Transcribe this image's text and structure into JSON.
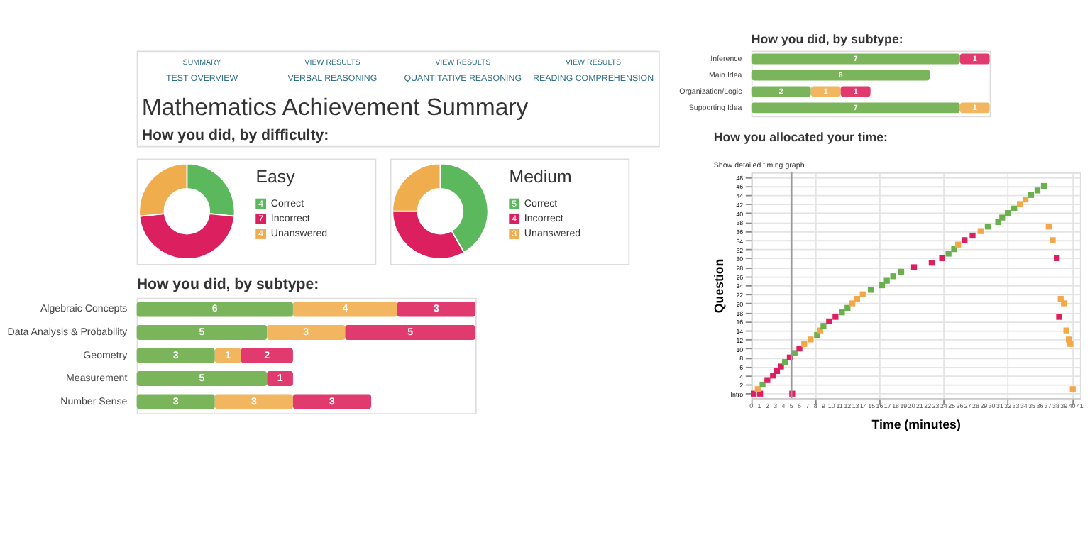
{
  "chart_data": [
    {
      "type": "other",
      "title": "Mathematics Achievement Summary",
      "subtitle": "How you did, by difficulty:",
      "annotations": [
        "SUMMARY",
        "TEST OVERVIEW",
        "VIEW RESULTS",
        "VERBAL REASONING",
        "VIEW RESULTS",
        "QUANTITATIVE REASONING",
        "VIEW RESULTS",
        "READING COMPREHENSION"
      ]
    },
    {
      "type": "donut",
      "title": "Easy",
      "categories": [
        "Correct",
        "Incorrect",
        "Unanswered"
      ],
      "values": [
        4,
        7,
        4
      ],
      "colors": [
        "#5cb85c",
        "#dc1f5f",
        "#f0ad4e"
      ],
      "data_labels": true,
      "legend": "right"
    },
    {
      "type": "donut",
      "title": "Medium",
      "categories": [
        "Correct",
        "Incorrect",
        "Unanswered"
      ],
      "values": [
        5,
        4,
        3
      ],
      "colors": [
        "#5cb85c",
        "#dc1f5f",
        "#f0ad4e"
      ],
      "data_labels": true,
      "legend": "right"
    },
    {
      "type": "bar",
      "title": "How you did, by subtype:",
      "orientation": "horizontal",
      "stacked": true,
      "data_labels": true,
      "categories": [
        "Algebraic Concepts",
        "Data Analysis & Probability",
        "Geometry",
        "Measurement",
        "Number Sense"
      ],
      "series": [
        {
          "color": "#7ab55c",
          "values": [
            6,
            5,
            3,
            5,
            3
          ]
        },
        {
          "color": "#f2b661",
          "values": [
            4,
            3,
            1,
            null,
            3
          ]
        },
        {
          "color": "#e03a6e",
          "values": [
            3,
            5,
            2,
            1,
            3
          ]
        }
      ]
    },
    {
      "type": "bar",
      "title": "How you did, by subtype:",
      "orientation": "horizontal",
      "stacked": true,
      "data_labels": true,
      "categories": [
        "Inference",
        "Main Idea",
        "Organization/Logic",
        "Supporting Idea"
      ],
      "series": [
        {
          "color": "#7ab55c",
          "values": [
            7,
            6,
            2,
            7
          ]
        },
        {
          "color": "#f2b661",
          "values": [
            null,
            null,
            1,
            1
          ]
        },
        {
          "color": "#e03a6e",
          "values": [
            1,
            null,
            1,
            null
          ]
        }
      ]
    },
    {
      "type": "scatter",
      "title": "How you allocated your time:",
      "annotations": [
        "Show detailed timing graph"
      ],
      "xlabel": "Time (minutes)",
      "ylabel": "Question",
      "marker": "square",
      "grid": true,
      "xlim": [
        0,
        41
      ],
      "xticks": [
        0,
        1,
        2,
        3,
        4,
        5,
        6,
        7,
        8,
        9,
        10,
        11,
        12,
        13,
        14,
        15,
        16,
        17,
        18,
        19,
        20,
        21,
        22,
        23,
        24,
        25,
        26,
        27,
        28,
        29,
        30,
        31,
        32,
        33,
        34,
        35,
        36,
        37,
        38,
        39,
        40,
        41
      ],
      "ylim": [
        -1,
        49
      ],
      "yticks": [
        {
          "value": 0,
          "label": "Intro"
        },
        2,
        4,
        6,
        8,
        10,
        12,
        14,
        16,
        18,
        20,
        22,
        24,
        26,
        28,
        30,
        32,
        34,
        36,
        38,
        40,
        42,
        44,
        46,
        48
      ],
      "ref_lines": [
        {
          "axis": "x",
          "value": 5,
          "color": "#999999"
        }
      ],
      "series": [
        {
          "x": [
            0.3,
            1.1,
            5.1,
            0.8,
            1.4,
            2.0,
            2.7,
            3.2,
            3.7,
            4.2,
            4.8,
            5.4,
            6.0,
            6.6,
            7.4,
            8.2,
            8.6,
            9.0,
            9.7,
            10.5,
            11.3,
            12.0,
            12.6,
            13.2,
            13.9,
            14.9,
            16.3,
            16.9,
            17.7,
            18.7,
            20.3,
            22.5,
            23.8,
            24.6,
            25.3,
            25.8,
            26.6,
            27.6,
            28.6,
            29.5,
            30.8,
            31.3,
            32.0,
            32.8,
            33.5,
            34.2,
            34.9,
            35.7,
            36.5,
            37.1,
            37.6,
            38.1,
            38.6,
            39.0,
            38.4,
            39.3,
            39.6,
            39.8,
            40.1
          ],
          "values": [
            0,
            0,
            0,
            1,
            2,
            3,
            4,
            5,
            6,
            7,
            8,
            9,
            10,
            11,
            12,
            13,
            14,
            15,
            16,
            17,
            18,
            19,
            20,
            21,
            22,
            23,
            24,
            25,
            26,
            27,
            28,
            29,
            30,
            31,
            32,
            33,
            34,
            35,
            36,
            37,
            38,
            39,
            40,
            41,
            42,
            43,
            44,
            45,
            46,
            37,
            34,
            30,
            21,
            20,
            17,
            14,
            12,
            11,
            1
          ],
          "colors": [
            "#dc1f5f",
            "#dc1f5f",
            "#dc1f5f",
            "#f2a848",
            "#6ab04c",
            "#dc1f5f",
            "#dc1f5f",
            "#dc1f5f",
            "#dc1f5f",
            "#6ab04c",
            "#dc1f5f",
            "#6ab04c",
            "#dc1f5f",
            "#f2a848",
            "#f2a848",
            "#6ab04c",
            "#f2a848",
            "#6ab04c",
            "#dc1f5f",
            "#dc1f5f",
            "#6ab04c",
            "#6ab04c",
            "#f2a848",
            "#f2a848",
            "#f2a848",
            "#6ab04c",
            "#6ab04c",
            "#6ab04c",
            "#6ab04c",
            "#6ab04c",
            "#dc1f5f",
            "#dc1f5f",
            "#dc1f5f",
            "#6ab04c",
            "#6ab04c",
            "#f2a848",
            "#dc1f5f",
            "#dc1f5f",
            "#f2a848",
            "#6ab04c",
            "#6ab04c",
            "#6ab04c",
            "#6ab04c",
            "#6ab04c",
            "#f2a848",
            "#f2a848",
            "#6ab04c",
            "#6ab04c",
            "#6ab04c",
            "#f2a848",
            "#f2a848",
            "#dc1f5f",
            "#f2a848",
            "#f2a848",
            "#dc1f5f",
            "#f2a848",
            "#f2a848",
            "#f2a848",
            "#f2a848"
          ]
        }
      ]
    }
  ]
}
